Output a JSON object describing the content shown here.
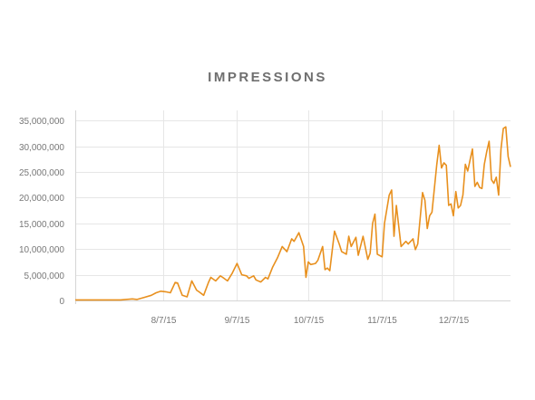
{
  "chart_data": {
    "type": "line",
    "title": "IMPRESSIONS",
    "xlabel": "",
    "ylabel": "",
    "x_start": "2015-07-01",
    "x_end": "2015-12-31",
    "x_ticks": [
      {
        "date": "2015-08-07",
        "label": "8/7/15"
      },
      {
        "date": "2015-09-07",
        "label": "9/7/15"
      },
      {
        "date": "2015-10-07",
        "label": "10/7/15"
      },
      {
        "date": "2015-11-07",
        "label": "11/7/15"
      },
      {
        "date": "2015-12-07",
        "label": "12/7/15"
      }
    ],
    "ylim": [
      0,
      37000000
    ],
    "y_ticks": [
      0,
      5000000,
      10000000,
      15000000,
      20000000,
      25000000,
      30000000,
      35000000
    ],
    "y_tick_labels": [
      "0",
      "5,000,000",
      "10,000,000",
      "15,000,000",
      "20,000,000",
      "25,000,000",
      "30,000,000",
      "35,000,000"
    ],
    "grid": {
      "x": true,
      "y": true
    },
    "legend": "none",
    "colors": {
      "line": "#e8901e",
      "grid": "#e6e6e6",
      "axis": "#d5d5d5"
    },
    "series": [
      {
        "x": [
          "2015-07-01",
          "2015-07-10",
          "2015-07-20",
          "2015-07-25",
          "2015-07-27",
          "2015-07-30",
          "2015-08-02",
          "2015-08-04",
          "2015-08-06",
          "2015-08-08",
          "2015-08-10",
          "2015-08-12",
          "2015-08-13",
          "2015-08-15",
          "2015-08-17",
          "2015-08-19",
          "2015-08-21",
          "2015-08-22",
          "2015-08-24",
          "2015-08-26",
          "2015-08-27",
          "2015-08-29",
          "2015-08-31",
          "2015-09-01",
          "2015-09-03",
          "2015-09-05",
          "2015-09-07",
          "2015-09-09",
          "2015-09-11",
          "2015-09-12",
          "2015-09-14",
          "2015-09-15",
          "2015-09-17",
          "2015-09-19",
          "2015-09-20",
          "2015-09-22",
          "2015-09-24",
          "2015-09-26",
          "2015-09-28",
          "2015-09-30",
          "2015-10-01",
          "2015-10-03",
          "2015-10-05",
          "2015-10-06",
          "2015-10-07",
          "2015-10-08",
          "2015-10-10",
          "2015-10-11",
          "2015-10-13",
          "2015-10-14",
          "2015-10-15",
          "2015-10-16",
          "2015-10-18",
          "2015-10-20",
          "2015-10-21",
          "2015-10-23",
          "2015-10-24",
          "2015-10-25",
          "2015-10-27",
          "2015-10-28",
          "2015-10-30",
          "2015-11-01",
          "2015-11-02",
          "2015-11-03",
          "2015-11-04",
          "2015-11-05",
          "2015-11-07",
          "2015-11-08",
          "2015-11-10",
          "2015-11-11",
          "2015-11-12",
          "2015-11-13",
          "2015-11-15",
          "2015-11-17",
          "2015-11-18",
          "2015-11-20",
          "2015-11-21",
          "2015-11-22",
          "2015-11-24",
          "2015-11-25",
          "2015-11-26",
          "2015-11-27",
          "2015-11-28",
          "2015-11-30",
          "2015-12-01",
          "2015-12-02",
          "2015-12-03",
          "2015-12-04",
          "2015-12-05",
          "2015-12-06",
          "2015-12-07",
          "2015-12-08",
          "2015-12-09",
          "2015-12-10",
          "2015-12-11",
          "2015-12-12",
          "2015-12-13",
          "2015-12-15",
          "2015-12-16",
          "2015-12-17",
          "2015-12-18",
          "2015-12-19",
          "2015-12-20",
          "2015-12-21",
          "2015-12-22",
          "2015-12-23",
          "2015-12-24",
          "2015-12-25",
          "2015-12-26",
          "2015-12-27",
          "2015-12-28",
          "2015-12-29",
          "2015-12-30",
          "2015-12-31"
        ],
        "y": [
          100000,
          100000,
          100000,
          300000,
          200000,
          600000,
          1000000,
          1500000,
          1800000,
          1700000,
          1500000,
          3500000,
          3400000,
          1000000,
          700000,
          3800000,
          2000000,
          1700000,
          1000000,
          3500000,
          4500000,
          3800000,
          4800000,
          4500000,
          3800000,
          5300000,
          7200000,
          5000000,
          4800000,
          4300000,
          4800000,
          4000000,
          3600000,
          4500000,
          4200000,
          6500000,
          8300000,
          10500000,
          9500000,
          12000000,
          11500000,
          13200000,
          10500000,
          4500000,
          7500000,
          7000000,
          7200000,
          7800000,
          10500000,
          6000000,
          6300000,
          5800000,
          13500000,
          11000000,
          9500000,
          9000000,
          12500000,
          10500000,
          12300000,
          8800000,
          12500000,
          8000000,
          9200000,
          15000000,
          16800000,
          9000000,
          8500000,
          15000000,
          20500000,
          21500000,
          12500000,
          18500000,
          10500000,
          11500000,
          11000000,
          12000000,
          9900000,
          11000000,
          21000000,
          19500000,
          14000000,
          16500000,
          17200000,
          26500000,
          30200000,
          25800000,
          26800000,
          26300000,
          18500000,
          18800000,
          16500000,
          21200000,
          18000000,
          18500000,
          20500000,
          26500000,
          25200000,
          29500000,
          22200000,
          23000000,
          22000000,
          21800000,
          26500000,
          29000000,
          31000000,
          23500000,
          22800000,
          24000000,
          20500000,
          29500000,
          33500000,
          33800000,
          28000000,
          26000000
        ]
      }
    ]
  }
}
